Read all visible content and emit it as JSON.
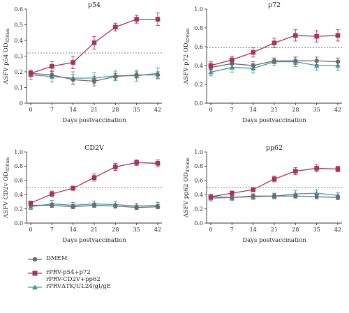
{
  "chart_data": [
    {
      "type": "line",
      "title": "p54",
      "ylabel_main": "ASFV p54 OD",
      "ylabel_sub": "450nm",
      "xlabel": "Days postvaccination",
      "categories": [
        "0",
        "7",
        "14",
        "21",
        "28",
        "35",
        "42"
      ],
      "ylim": [
        0,
        0.6
      ],
      "yticks": [
        "0",
        "0.1",
        "0.2",
        "0.3",
        "0.4",
        "0.5",
        "0.6"
      ],
      "threshold": 0.32,
      "series": [
        {
          "name": "DMEM",
          "values": [
            0.19,
            0.18,
            0.15,
            0.14,
            0.17,
            0.18,
            0.18
          ],
          "err": [
            0.02,
            0.02,
            0.03,
            0.03,
            0.02,
            0.02,
            0.02
          ]
        },
        {
          "name": "rPRV-p54+p72",
          "values": [
            0.19,
            0.235,
            0.26,
            0.385,
            0.485,
            0.535,
            0.535
          ],
          "err": [
            0.02,
            0.03,
            0.04,
            0.04,
            0.025,
            0.025,
            0.04
          ]
        },
        {
          "name": "rPRVΔTK/UL24/gI/gE",
          "values": [
            0.18,
            0.17,
            0.16,
            0.16,
            0.175,
            0.175,
            0.19
          ],
          "err": [
            0.03,
            0.035,
            0.04,
            0.035,
            0.03,
            0.035,
            0.035
          ]
        }
      ]
    },
    {
      "type": "line",
      "title": "p72",
      "ylabel_main": "ASFV p72 OD",
      "ylabel_sub": "450nm",
      "xlabel": "Days postvaccination",
      "categories": [
        "0",
        "7",
        "14",
        "21",
        "28",
        "35",
        "42"
      ],
      "ylim": [
        0,
        1.0
      ],
      "yticks": [
        "0.0",
        "0.2",
        "0.4",
        "0.6",
        "0.8",
        "1.0"
      ],
      "threshold": 0.59,
      "series": [
        {
          "name": "DMEM",
          "values": [
            0.38,
            0.42,
            0.4,
            0.45,
            0.45,
            0.45,
            0.44
          ],
          "err": [
            0.03,
            0.04,
            0.04,
            0.03,
            0.04,
            0.04,
            0.04
          ]
        },
        {
          "name": "rPRV-p54+p72",
          "values": [
            0.4,
            0.46,
            0.54,
            0.64,
            0.72,
            0.71,
            0.72
          ],
          "err": [
            0.04,
            0.04,
            0.05,
            0.05,
            0.06,
            0.06,
            0.06
          ]
        },
        {
          "name": "rPRVΔTK/UL24/gI/gE",
          "values": [
            0.33,
            0.38,
            0.37,
            0.44,
            0.44,
            0.4,
            0.4
          ],
          "err": [
            0.04,
            0.05,
            0.05,
            0.04,
            0.05,
            0.05,
            0.05
          ]
        }
      ]
    },
    {
      "type": "line",
      "title": "CD2V",
      "ylabel_main": "ASFV CD2v OD",
      "ylabel_sub": "450nm",
      "xlabel": "Days postvaccination",
      "categories": [
        "0",
        "7",
        "14",
        "21",
        "28",
        "35",
        "42"
      ],
      "ylim": [
        0,
        1.0
      ],
      "yticks": [
        "0.0",
        "0.2",
        "0.4",
        "0.6",
        "0.8",
        "1.0"
      ],
      "threshold": 0.5,
      "series": [
        {
          "name": "DMEM",
          "values": [
            0.25,
            0.25,
            0.23,
            0.25,
            0.24,
            0.22,
            0.23
          ],
          "err": [
            0.04,
            0.03,
            0.03,
            0.03,
            0.03,
            0.03,
            0.03
          ]
        },
        {
          "name": "rPRV-CD2V+pp62",
          "values": [
            0.28,
            0.41,
            0.49,
            0.64,
            0.79,
            0.85,
            0.84
          ],
          "err": [
            0.03,
            0.04,
            0.03,
            0.05,
            0.05,
            0.04,
            0.05
          ]
        },
        {
          "name": "rPRVΔTK/UL24/gI/gE",
          "values": [
            0.23,
            0.27,
            0.25,
            0.27,
            0.26,
            0.24,
            0.25
          ],
          "err": [
            0.04,
            0.05,
            0.04,
            0.04,
            0.04,
            0.04,
            0.04
          ]
        }
      ]
    },
    {
      "type": "line",
      "title": "pp62",
      "ylabel_main": "ASFV pp62 OD",
      "ylabel_sub": "450nm",
      "xlabel": "Days postvaccination",
      "categories": [
        "0",
        "7",
        "14",
        "21",
        "28",
        "35",
        "42"
      ],
      "ylim": [
        0,
        1.0
      ],
      "yticks": [
        "0.0",
        "0.2",
        "0.4",
        "0.6",
        "0.8",
        "1.0"
      ],
      "threshold": 0.5,
      "series": [
        {
          "name": "DMEM",
          "values": [
            0.37,
            0.36,
            0.38,
            0.38,
            0.38,
            0.37,
            0.36
          ],
          "err": [
            0.03,
            0.03,
            0.03,
            0.03,
            0.03,
            0.03,
            0.03
          ]
        },
        {
          "name": "rPRV-CD2V+pp62",
          "values": [
            0.37,
            0.42,
            0.47,
            0.62,
            0.73,
            0.77,
            0.76
          ],
          "err": [
            0.03,
            0.03,
            0.03,
            0.04,
            0.05,
            0.05,
            0.04
          ]
        },
        {
          "name": "rPRVΔTK/UL24/gI/gE",
          "values": [
            0.35,
            0.36,
            0.37,
            0.38,
            0.41,
            0.42,
            0.39
          ],
          "err": [
            0.04,
            0.04,
            0.04,
            0.04,
            0.05,
            0.05,
            0.04
          ]
        }
      ]
    }
  ],
  "legend": [
    {
      "label": "DMEM",
      "marker": "circle",
      "color": "#6b6b6b"
    },
    {
      "label": "rPRV-p54+p72\nrPRV-CD2V+pp62",
      "marker": "square",
      "color": "#a8325e"
    },
    {
      "label": "rPRVΔTK/UL24/gI/gE",
      "marker": "triangle",
      "color": "#3f9aa8"
    }
  ],
  "style": {
    "colors": [
      "#6b6b6b",
      "#a8325e",
      "#3f9aa8"
    ],
    "markers": [
      "circle",
      "square",
      "triangle"
    ],
    "axis_color": "#333333",
    "threshold_color": "#555555"
  }
}
